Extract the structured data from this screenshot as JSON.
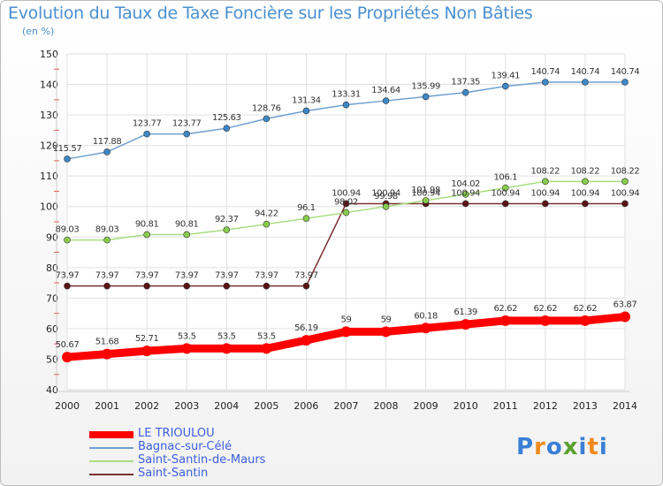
{
  "title": "Evolution du Taux de Taxe Foncière sur les Propriétés Non Bâties",
  "unit_label": "(en %)",
  "logo": {
    "letters": [
      "P",
      "r",
      "o",
      "x",
      "i",
      "t",
      "i"
    ],
    "colors": [
      "#3a7fd5",
      "#f08a1c",
      "#3a7fd5",
      "#5aa02c",
      "#3a7fd5",
      "#f08a1c",
      "#3a7fd5"
    ]
  },
  "chart_data": {
    "type": "line",
    "title": "Evolution du Taux de Taxe Foncière sur les Propriétés Non Bâties",
    "ylabel": "(en %)",
    "ylim": [
      40,
      150
    ],
    "yticks": [
      40,
      50,
      60,
      70,
      80,
      90,
      100,
      110,
      120,
      130,
      140,
      150
    ],
    "categories": [
      "2000",
      "2001",
      "2002",
      "2003",
      "2004",
      "2005",
      "2006",
      "2007",
      "2008",
      "2009",
      "2010",
      "2011",
      "2012",
      "2013",
      "2014"
    ],
    "grid": true,
    "series": [
      {
        "name": "LE TRIOULOU",
        "color": "#ff0000",
        "marker": "#ff0000",
        "labelColor": "#333333",
        "width": 9,
        "markerR": 6,
        "values": [
          50.67,
          51.68,
          52.71,
          53.5,
          53.5,
          53.5,
          56.19,
          59,
          59,
          60.18,
          61.39,
          62.62,
          62.62,
          62.62,
          63.87
        ],
        "labels": [
          "50.67",
          "51.68",
          "52.71",
          "53.5",
          "53.5",
          "53.5",
          "56.19",
          "59",
          "59",
          "60.18",
          "61.39",
          "62.62",
          "62.62",
          "62.62",
          "63.87"
        ]
      },
      {
        "name": "Bagnac-sur-Célé",
        "color": "#6fa0d0",
        "marker": "#3d88c8",
        "labelColor": "#333333",
        "width": 1.5,
        "markerR": 3.5,
        "values": [
          115.57,
          117.88,
          123.77,
          123.77,
          125.63,
          128.76,
          131.34,
          133.31,
          134.64,
          135.99,
          137.35,
          139.41,
          140.74,
          140.74,
          140.74
        ],
        "labels": [
          "115.57",
          "117.88",
          "123.77",
          "123.77",
          "125.63",
          "128.76",
          "131.34",
          "133.31",
          "134.64",
          "135.99",
          "137.35",
          "139.41",
          "140.74",
          "140.74",
          "140.74"
        ]
      },
      {
        "name": "Saint-Santin-de-Maurs",
        "color": "#a8de80",
        "marker": "#88cc4c",
        "labelColor": "#333333",
        "width": 1.5,
        "markerR": 3.5,
        "values": [
          89.03,
          89.03,
          90.81,
          90.81,
          92.37,
          94.22,
          96.1,
          98.02,
          99.98,
          101.98,
          104.02,
          106.1,
          108.22,
          108.22,
          108.22
        ],
        "labels": [
          "89.03",
          "89.03",
          "90.81",
          "90.81",
          "92.37",
          "94.22",
          "96.1",
          "98.02",
          "99.98",
          "101.98",
          "104.02",
          "106.1",
          "108.22",
          "108.22",
          "108.22"
        ]
      },
      {
        "name": "Saint-Santin",
        "color": "#7a3030",
        "marker": "#5a1414",
        "labelColor": "#333333",
        "width": 1.5,
        "markerR": 3.5,
        "values": [
          73.97,
          73.97,
          73.97,
          73.97,
          73.97,
          73.97,
          73.97,
          100.94,
          100.94,
          100.94,
          100.94,
          100.94,
          100.94,
          100.94,
          100.94
        ],
        "labels": [
          "73.97",
          "73.97",
          "73.97",
          "73.97",
          "73.97",
          "73.97",
          "73.97",
          "100.94",
          "100.94",
          "100.94",
          "100.94",
          "100.94",
          "100.94",
          "100.94",
          "100.94"
        ]
      }
    ],
    "legend": {
      "position": "bottom-left"
    }
  }
}
